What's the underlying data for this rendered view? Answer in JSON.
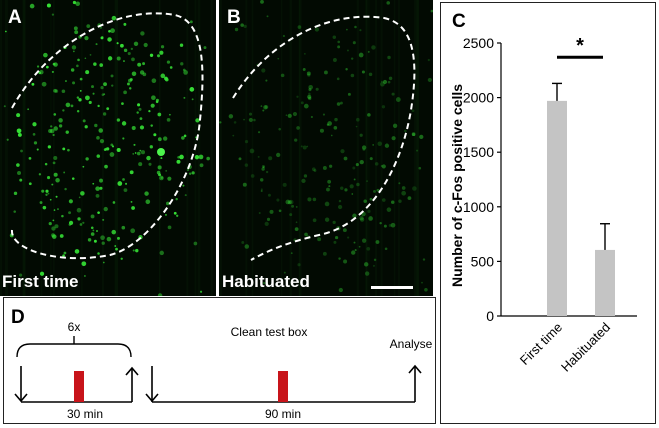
{
  "panels": {
    "a": {
      "letter": "A",
      "caption": "First time"
    },
    "b": {
      "letter": "B",
      "caption": "Habituated"
    },
    "c": {
      "letter": "C"
    },
    "d": {
      "letter": "D"
    }
  },
  "colors": {
    "cell": "#35e035",
    "background": "#020a02",
    "bar": "#c4c4c4",
    "block": "#c8141a"
  },
  "timeline": {
    "repeat_label": "6x",
    "duration_1": "30 min",
    "event_label": "Clean test box",
    "duration_2": "90 min",
    "end_label": "Analyse"
  },
  "chart_data": {
    "type": "bar",
    "categories": [
      "First time",
      "Habituated"
    ],
    "values": [
      1970,
      605
    ],
    "errors": [
      160,
      240
    ],
    "ylabel": "Number of c-Fos positive cells",
    "xlabel": "",
    "ylim": [
      0,
      2500
    ],
    "yticks": [
      0,
      500,
      1000,
      1500,
      2000,
      2500
    ],
    "significance": "*",
    "grid": false,
    "legend": "none"
  }
}
